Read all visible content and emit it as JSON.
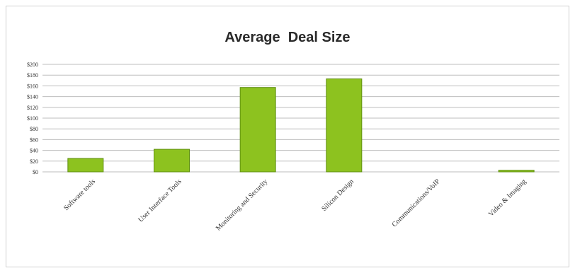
{
  "chart_data": {
    "type": "bar",
    "title": "Average  Deal Size",
    "xlabel": "",
    "ylabel": "",
    "categories": [
      "Software tools",
      "User Interface Tools",
      "Monitoring and Security",
      "Silicon Design",
      "Communications/VoIP",
      "Video & Imaging"
    ],
    "values": [
      25,
      42,
      157,
      173,
      0,
      3
    ],
    "ylim": [
      0,
      200
    ],
    "yticks": [
      0,
      20,
      40,
      60,
      80,
      100,
      120,
      140,
      160,
      180,
      200
    ],
    "ytick_labels": [
      "$0",
      "$20",
      "$40",
      "$60",
      "$80",
      "$100",
      "$120",
      "$140",
      "$160",
      "$180",
      "$200"
    ],
    "grid": true,
    "legend": "none",
    "bar_color": "#8dc21f",
    "bar_edge_color": "#5f8f10",
    "grid_color": "#bdbdbd"
  }
}
